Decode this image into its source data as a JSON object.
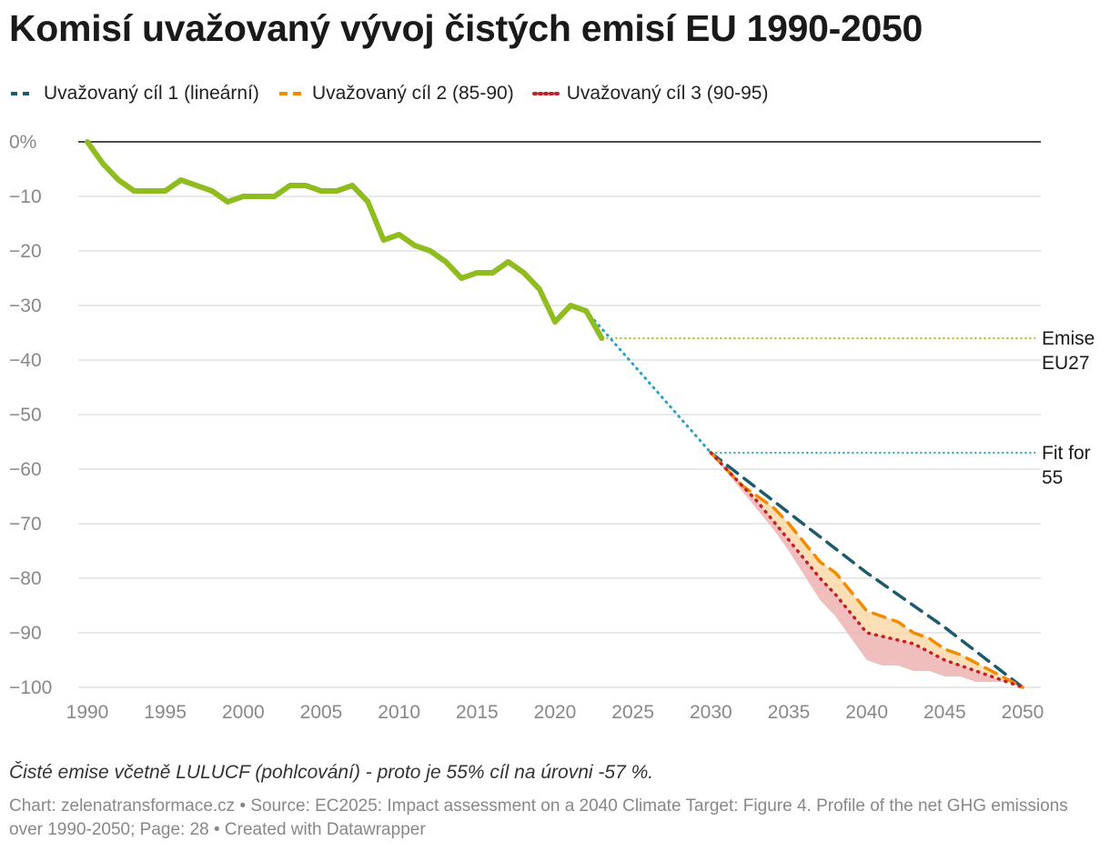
{
  "title": "Komisí uvažovaný vývoj čistých emisí EU 1990-2050",
  "legend": [
    {
      "label": "Uvažovaný cíl 1 (lineární)",
      "color": "#1d5a6e",
      "style": "dashed"
    },
    {
      "label": "Uvažovaný cíl 2 (85-90)",
      "color": "#f28b00",
      "style": "dashed"
    },
    {
      "label": "Uvažovaný cíl 3 (90-95)",
      "color": "#c41e2a",
      "style": "dotted"
    }
  ],
  "note": "Čisté emise včetně LULUCF (pohlcování) - proto je 55% cíl na úrovni -57 %.",
  "source": "Chart: zelenatransformace.cz • Source: EC2025: Impact assessment on a 2040 Climate Target: Figure 4. Profile of the net GHG emissions over 1990-2050; Page: 28 • Created with Datawrapper",
  "chart_data": {
    "type": "line",
    "xlim": [
      1990,
      2050
    ],
    "ylim": [
      -100,
      0
    ],
    "x_ticks": [
      1990,
      1995,
      2000,
      2005,
      2010,
      2015,
      2020,
      2025,
      2030,
      2035,
      2040,
      2045,
      2050
    ],
    "y_ticks": [
      0,
      -10,
      -20,
      -30,
      -40,
      -50,
      -60,
      -70,
      -80,
      -90,
      -100
    ],
    "y_tick_labels": [
      "0%",
      "−10",
      "−20",
      "−30",
      "−40",
      "−50",
      "−60",
      "−70",
      "−80",
      "−90",
      "−100"
    ],
    "grid": true,
    "legend_position": "top-left",
    "series": [
      {
        "color": "#8fbc1e",
        "style": "solid",
        "points": [
          [
            1990,
            0
          ],
          [
            1991,
            -4
          ],
          [
            1992,
            -7
          ],
          [
            1993,
            -9
          ],
          [
            1994,
            -9
          ],
          [
            1995,
            -9
          ],
          [
            1996,
            -7
          ],
          [
            1997,
            -8
          ],
          [
            1998,
            -9
          ],
          [
            1999,
            -11
          ],
          [
            2000,
            -10
          ],
          [
            2001,
            -10
          ],
          [
            2002,
            -10
          ],
          [
            2003,
            -8
          ],
          [
            2004,
            -8
          ],
          [
            2005,
            -9
          ],
          [
            2006,
            -9
          ],
          [
            2007,
            -8
          ],
          [
            2008,
            -11
          ],
          [
            2009,
            -18
          ],
          [
            2010,
            -17
          ],
          [
            2011,
            -19
          ],
          [
            2012,
            -20
          ],
          [
            2013,
            -22
          ],
          [
            2014,
            -25
          ],
          [
            2015,
            -24
          ],
          [
            2016,
            -24
          ],
          [
            2017,
            -22
          ],
          [
            2018,
            -24
          ],
          [
            2019,
            -27
          ],
          [
            2020,
            -33
          ],
          [
            2021,
            -30
          ],
          [
            2022,
            -31
          ],
          [
            2023,
            -36
          ]
        ]
      },
      {
        "color": "#29a3c9",
        "style": "dotted",
        "points": [
          [
            2022,
            -31
          ],
          [
            2030,
            -57
          ]
        ]
      },
      {
        "name": "Uvažovaný cíl 1 (lineární)",
        "color": "#1d5a6e",
        "style": "dashed",
        "points": [
          [
            2030,
            -57
          ],
          [
            2035,
            -68
          ],
          [
            2040,
            -79
          ],
          [
            2045,
            -89
          ],
          [
            2050,
            -100
          ]
        ]
      },
      {
        "name": "Uvažovaný cíl 2 (85-90)",
        "color": "#f28b00",
        "style": "dashed",
        "points": [
          [
            2030,
            -57
          ],
          [
            2032,
            -63
          ],
          [
            2034,
            -67
          ],
          [
            2035,
            -70
          ],
          [
            2037,
            -77
          ],
          [
            2038,
            -79
          ],
          [
            2040,
            -86
          ],
          [
            2042,
            -88
          ],
          [
            2043,
            -90
          ],
          [
            2044,
            -91
          ],
          [
            2045,
            -93
          ],
          [
            2046,
            -94
          ],
          [
            2048,
            -97
          ],
          [
            2050,
            -100
          ]
        ]
      },
      {
        "name": "Uvažovaný cíl 3 (90-95)",
        "color": "#c41e2a",
        "style": "dotted",
        "points": [
          [
            2030,
            -57
          ],
          [
            2033,
            -66
          ],
          [
            2035,
            -73
          ],
          [
            2037,
            -80
          ],
          [
            2038,
            -83
          ],
          [
            2040,
            -90
          ],
          [
            2043,
            -92
          ],
          [
            2045,
            -95
          ],
          [
            2047,
            -97
          ],
          [
            2050,
            -100
          ]
        ]
      }
    ],
    "bands": [
      {
        "color": "#fbd9a9",
        "upper": [
          [
            2030,
            -57
          ],
          [
            2032,
            -63
          ],
          [
            2034,
            -67
          ],
          [
            2035,
            -70
          ],
          [
            2037,
            -77
          ],
          [
            2038,
            -79
          ],
          [
            2040,
            -86
          ],
          [
            2042,
            -88
          ],
          [
            2043,
            -90
          ],
          [
            2044,
            -91
          ],
          [
            2045,
            -93
          ],
          [
            2046,
            -94
          ],
          [
            2048,
            -97
          ],
          [
            2050,
            -100
          ]
        ],
        "lower": [
          [
            2030,
            -57
          ],
          [
            2033,
            -66
          ],
          [
            2035,
            -73
          ],
          [
            2037,
            -80
          ],
          [
            2038,
            -83
          ],
          [
            2040,
            -90
          ],
          [
            2043,
            -92
          ],
          [
            2045,
            -95
          ],
          [
            2047,
            -97
          ],
          [
            2050,
            -100
          ]
        ]
      },
      {
        "color": "#efb3b3",
        "upper": [
          [
            2030,
            -57
          ],
          [
            2033,
            -66
          ],
          [
            2035,
            -73
          ],
          [
            2037,
            -80
          ],
          [
            2038,
            -83
          ],
          [
            2040,
            -90
          ],
          [
            2043,
            -92
          ],
          [
            2045,
            -95
          ],
          [
            2047,
            -97
          ],
          [
            2050,
            -100
          ]
        ],
        "lower": [
          [
            2030,
            -57
          ],
          [
            2032,
            -64
          ],
          [
            2034,
            -71
          ],
          [
            2035,
            -75
          ],
          [
            2037,
            -84
          ],
          [
            2038,
            -87
          ],
          [
            2040,
            -95
          ],
          [
            2041,
            -96
          ],
          [
            2042,
            -96
          ],
          [
            2043,
            -97
          ],
          [
            2044,
            -97
          ],
          [
            2045,
            -98
          ],
          [
            2046,
            -98
          ],
          [
            2047,
            -99
          ],
          [
            2048,
            -99
          ],
          [
            2049,
            -99
          ],
          [
            2050,
            -100
          ]
        ]
      }
    ],
    "reference_lines": [
      {
        "y": -36,
        "x_start": 2023,
        "color": "#a3c21f",
        "label_lines": [
          "Emise",
          "EU27"
        ]
      },
      {
        "y": -57,
        "x_start": 2030,
        "color": "#29a3c9",
        "label_lines": [
          "Fit for",
          "55"
        ]
      }
    ]
  }
}
